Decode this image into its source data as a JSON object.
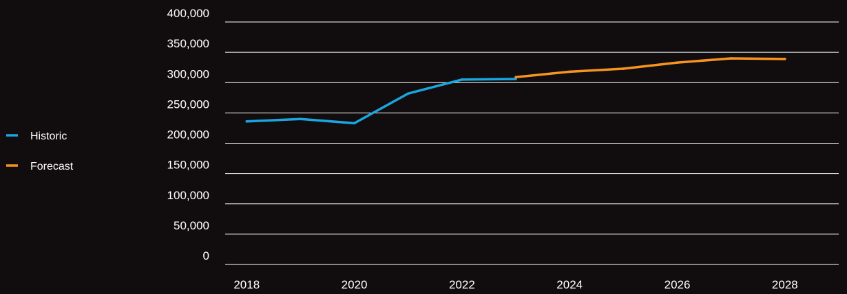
{
  "chart_data": {
    "type": "line",
    "title": "",
    "xlabel": "",
    "ylabel": "",
    "ylim": [
      0,
      400000
    ],
    "yticks": [
      "0",
      "50,000",
      "100,000",
      "150,000",
      "200,000",
      "250,000",
      "300,000",
      "350,000",
      "400,000"
    ],
    "xlim": [
      2017.6,
      2029.0
    ],
    "xticks": [
      "2018",
      "2020",
      "2022",
      "2024",
      "2026",
      "2028"
    ],
    "grid": true,
    "legend_position": "left",
    "series": [
      {
        "name": "Historic",
        "color": "#1aa6e0",
        "x": [
          2018,
          2019,
          2020,
          2021,
          2022,
          2023
        ],
        "y": [
          236000,
          240000,
          233000,
          282000,
          305000,
          306000
        ]
      },
      {
        "name": "Forecast",
        "color": "#f6941f",
        "x": [
          2023,
          2024,
          2025,
          2026,
          2027,
          2028
        ],
        "y": [
          309000,
          318000,
          323000,
          333000,
          340000,
          339000
        ]
      }
    ]
  }
}
